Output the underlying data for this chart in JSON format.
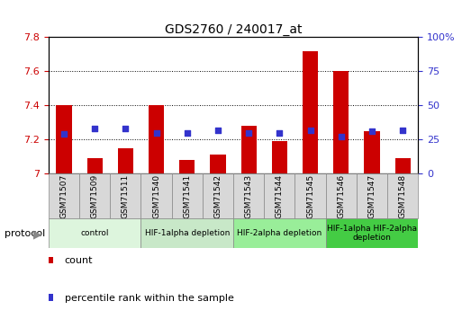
{
  "title": "GDS2760 / 240017_at",
  "samples": [
    "GSM71507",
    "GSM71509",
    "GSM71511",
    "GSM71540",
    "GSM71541",
    "GSM71542",
    "GSM71543",
    "GSM71544",
    "GSM71545",
    "GSM71546",
    "GSM71547",
    "GSM71548"
  ],
  "bar_values": [
    7.4,
    7.09,
    7.15,
    7.4,
    7.08,
    7.11,
    7.28,
    7.19,
    7.72,
    7.6,
    7.25,
    7.09
  ],
  "percentile_values": [
    29,
    33,
    33,
    30,
    30,
    32,
    30,
    30,
    32,
    27,
    31,
    32
  ],
  "ylim_left": [
    7.0,
    7.8
  ],
  "ylim_right": [
    0,
    100
  ],
  "yticks_left": [
    7.0,
    7.2,
    7.4,
    7.6,
    7.8
  ],
  "yticks_right": [
    0,
    25,
    50,
    75,
    100
  ],
  "bar_color": "#cc0000",
  "dot_color": "#3333cc",
  "bar_width": 0.5,
  "group_defs": [
    {
      "start": 0,
      "end": 2,
      "color": "#ddf5dd",
      "label": "control"
    },
    {
      "start": 3,
      "end": 5,
      "color": "#c8e8c8",
      "label": "HIF-1alpha depletion"
    },
    {
      "start": 6,
      "end": 8,
      "color": "#99ee99",
      "label": "HIF-2alpha depletion"
    },
    {
      "start": 9,
      "end": 11,
      "color": "#44cc44",
      "label": "HIF-1alpha HIF-2alpha\ndepletion"
    }
  ],
  "legend_count_label": "count",
  "legend_percentile_label": "percentile rank within the sample",
  "tick_color_left": "#cc0000",
  "tick_color_right": "#3333cc",
  "tick_label_bg": "#d8d8d8",
  "tick_label_edge": "#888888"
}
